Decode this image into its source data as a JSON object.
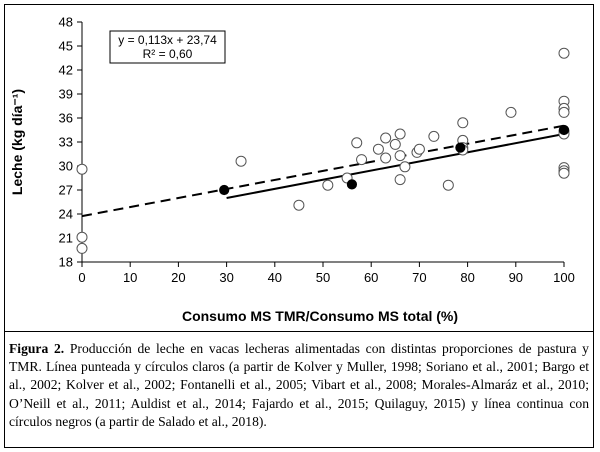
{
  "chart_data": {
    "type": "scatter",
    "xlabel": "Consumo MS TMR/Consumo MS total (%)",
    "ylabel": "Leche (kg día⁻¹)",
    "xlim": [
      0,
      100
    ],
    "ylim": [
      18,
      48
    ],
    "x_ticks": [
      0,
      10,
      20,
      30,
      40,
      50,
      60,
      70,
      80,
      90,
      100
    ],
    "y_ticks": [
      18,
      21,
      24,
      27,
      30,
      33,
      36,
      39,
      42,
      45,
      48
    ],
    "grid": false,
    "equation": {
      "line1": "y = 0,113x + 23,74",
      "line2": "R² = 0,60"
    },
    "series": [
      {
        "marker": "open-circle",
        "line": "dashed",
        "trend": {
          "slope": 0.113,
          "intercept": 23.74,
          "x": [
            0,
            100
          ]
        },
        "points": [
          [
            0,
            29.6
          ],
          [
            0,
            21.1
          ],
          [
            0,
            19.7
          ],
          [
            33,
            30.6
          ],
          [
            45,
            25.1
          ],
          [
            51,
            27.6
          ],
          [
            55,
            28.5
          ],
          [
            57,
            32.9
          ],
          [
            58,
            30.8
          ],
          [
            61.5,
            32.1
          ],
          [
            63,
            33.5
          ],
          [
            63,
            31.0
          ],
          [
            65,
            32.7
          ],
          [
            66,
            34.0
          ],
          [
            66,
            31.3
          ],
          [
            66,
            28.3
          ],
          [
            67,
            29.9
          ],
          [
            69.5,
            31.7
          ],
          [
            70,
            32.1
          ],
          [
            73,
            33.7
          ],
          [
            76,
            27.6
          ],
          [
            79,
            35.4
          ],
          [
            79,
            33.2
          ],
          [
            79,
            32.3
          ],
          [
            79,
            32.0
          ],
          [
            89,
            36.7
          ],
          [
            100,
            44.1
          ],
          [
            100,
            38.1
          ],
          [
            100,
            37.2
          ],
          [
            100,
            36.7
          ],
          [
            100,
            34.4
          ],
          [
            100,
            34.0
          ],
          [
            100,
            29.8
          ],
          [
            100,
            29.4
          ],
          [
            100,
            29.1
          ]
        ]
      },
      {
        "marker": "filled-circle",
        "line": "solid",
        "trend": {
          "x": [
            30,
            100
          ],
          "y": [
            26.0,
            34.0
          ]
        },
        "points": [
          [
            29.5,
            27.0
          ],
          [
            56,
            27.7
          ],
          [
            78.5,
            32.3
          ],
          [
            100,
            34.5
          ]
        ]
      }
    ]
  },
  "caption": {
    "label": "Figura 2.",
    "text": "Producción de leche en vacas lecheras alimentadas con distintas proporciones de pastura y TMR. Línea punteada y círculos claros (a partir de Kolver y Muller, 1998; Soriano et al., 2001; Bargo et al., 2002; Kolver et al., 2002; Fontanelli et al., 2005; Vibart et al., 2008; Morales-Almaráz et al., 2010; O’Neill et al., 2011; Auldist et al., 2014; Fajardo et al., 2015; Quilaguy, 2015) y línea continua con círculos negros (a partir de Salado et al., 2018)."
  }
}
